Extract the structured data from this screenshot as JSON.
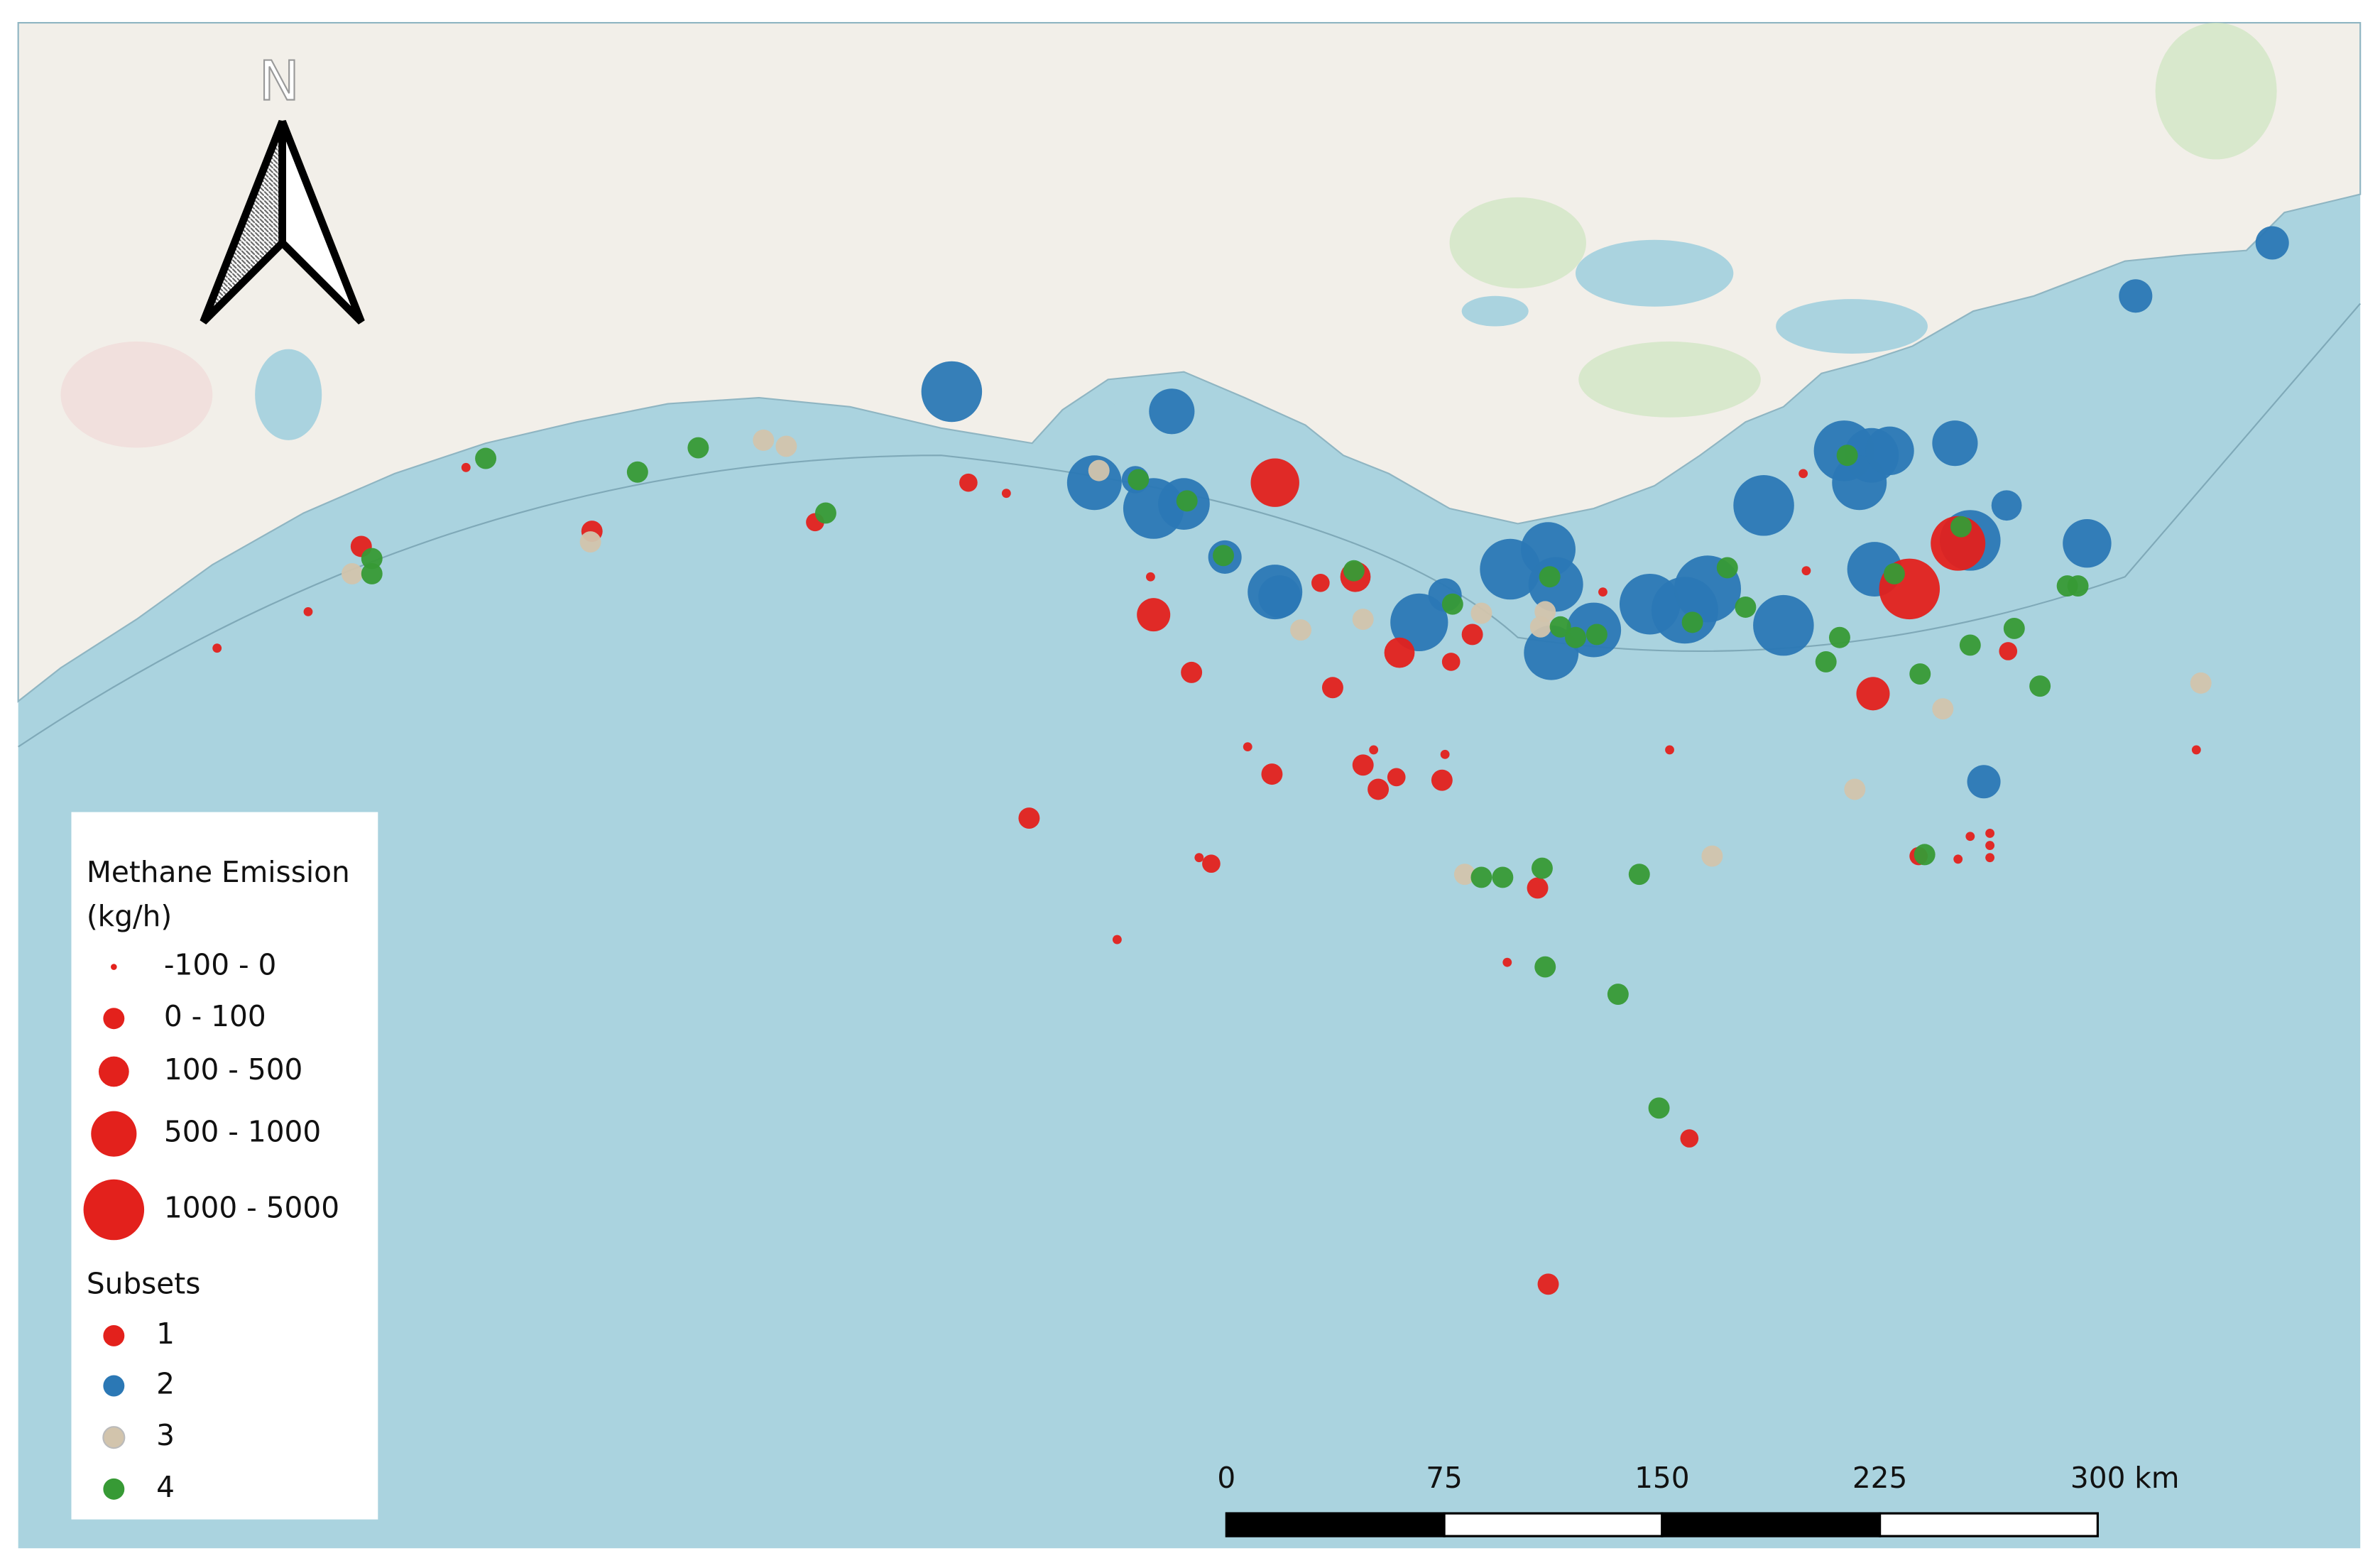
{
  "map": {
    "north_arrow": "N",
    "legend": {
      "title": [
        "Methane Emission",
        "(kg/h)"
      ],
      "size_color": "#e3211c",
      "size_classes": [
        "-100 - 0",
        "0 - 100",
        "100 - 500",
        "500 - 1000",
        "1000 - 5000"
      ],
      "subsets_title": "Subsets",
      "subsets": [
        {
          "label": "1",
          "color": "#e3211c"
        },
        {
          "label": "2",
          "color": "#2b78b5"
        },
        {
          "label": "3",
          "color": "#d2c4ac"
        },
        {
          "label": "4",
          "color": "#379a35"
        }
      ]
    },
    "scale_bar": {
      "ticks": [
        0,
        75,
        150,
        225,
        {
          "value": 300,
          "label": "300 km"
        }
      ]
    }
  }
}
